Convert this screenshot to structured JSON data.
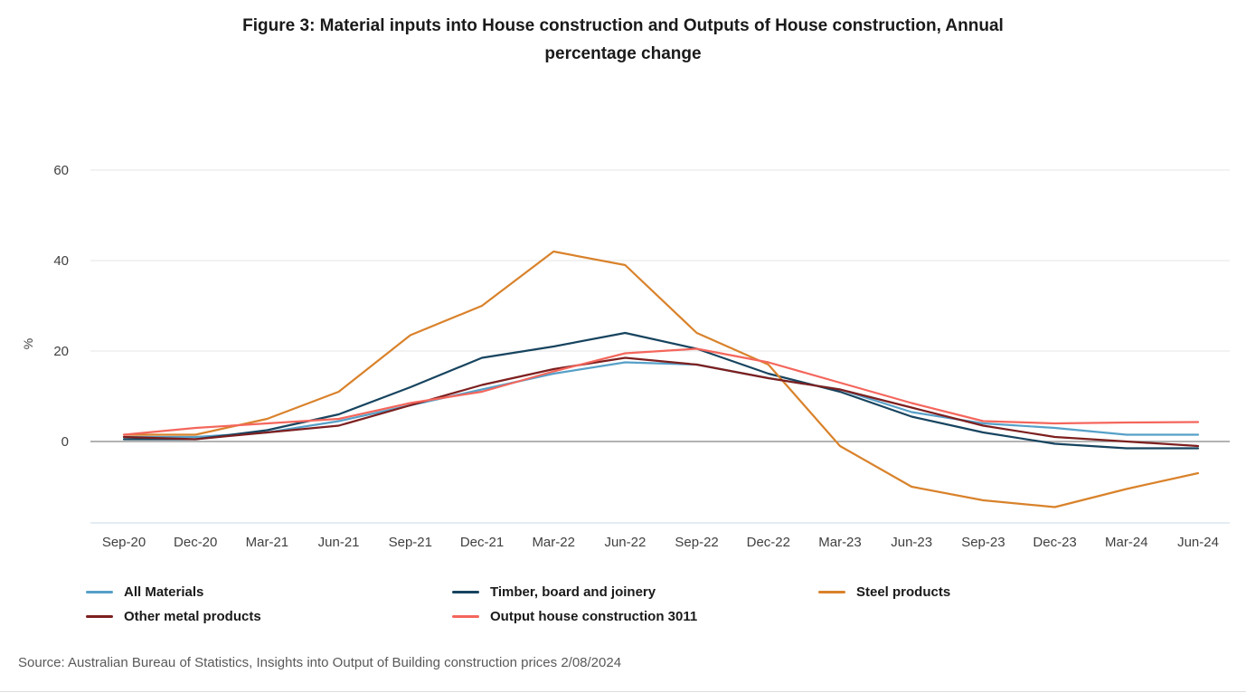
{
  "title": {
    "text": "Figure 3: Material inputs into House construction and Outputs of House construction, Annual percentage change"
  },
  "source": {
    "text": "Source: Australian Bureau of Statistics, Insights into Output of Building construction prices 2/08/2024"
  },
  "chart_data": {
    "type": "line",
    "title": "Figure 3: Material inputs into House construction and Outputs of House construction, Annual percentage change",
    "xlabel": "",
    "ylabel": "%",
    "x": [
      "Sep-20",
      "Dec-20",
      "Mar-21",
      "Jun-21",
      "Sep-21",
      "Dec-21",
      "Mar-22",
      "Jun-22",
      "Sep-22",
      "Dec-22",
      "Mar-23",
      "Jun-23",
      "Sep-23",
      "Dec-23",
      "Mar-24",
      "Jun-24"
    ],
    "yticks": [
      0,
      20,
      40,
      60
    ],
    "ylim": [
      -18,
      66
    ],
    "grid": "horizontal",
    "legend_position": "bottom",
    "zero_line_color": "#9a9a9a",
    "gridline_color": "#e4e4e4",
    "axis_line_color": "#c9d9e8",
    "series": [
      {
        "name": "All Materials",
        "color": "#56a0c8",
        "values": [
          1,
          1,
          2,
          4.5,
          8,
          11.5,
          15,
          17.5,
          17,
          14,
          11.5,
          6.5,
          4,
          3,
          1.5,
          1.5
        ]
      },
      {
        "name": "Timber, board and joinery",
        "color": "#17445f",
        "values": [
          0.5,
          0.5,
          2.5,
          6,
          12,
          18.5,
          21,
          24,
          20.5,
          15,
          11,
          5.5,
          2,
          -0.5,
          -1.5,
          -1.5
        ]
      },
      {
        "name": "Steel products",
        "color": "#d9822b",
        "values": [
          1.5,
          1.5,
          5,
          11,
          23.5,
          30,
          42,
          39,
          24,
          17,
          -1,
          -10,
          -13,
          -14.5,
          -10.5,
          -7
        ]
      },
      {
        "name": "Other metal products",
        "color": "#7d1f1f",
        "values": [
          1,
          0.5,
          2,
          3.5,
          8,
          12.5,
          16,
          18.5,
          17,
          14,
          11.5,
          7.5,
          3.5,
          1,
          0,
          -1
        ]
      },
      {
        "name": "Output house construction 3011",
        "color": "#f4665c",
        "values": [
          1.5,
          3,
          4,
          5,
          8.5,
          11,
          15.5,
          19.5,
          20.5,
          17.5,
          13,
          8.5,
          4.5,
          4,
          4.2,
          4.3
        ]
      }
    ]
  }
}
